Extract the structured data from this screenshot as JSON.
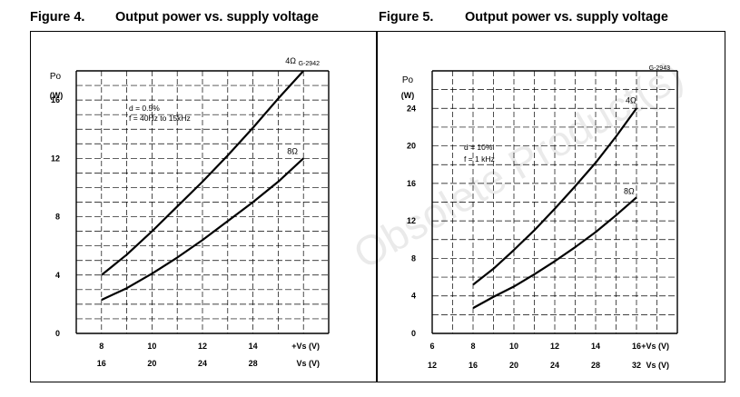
{
  "headings": [
    {
      "number": "Figure 4.",
      "title": "Output power vs. supply voltage"
    },
    {
      "number": "Figure 5.",
      "title": "Output power vs. supply voltage"
    }
  ],
  "watermark": "Obsolete Product(s)",
  "chart_data": [
    {
      "type": "line",
      "code": "G-2942",
      "ylabel": "Po",
      "yunit": "(W)",
      "ylim": [
        0,
        18
      ],
      "yticks": [
        0,
        4,
        8,
        12,
        16
      ],
      "xlim": [
        7,
        17
      ],
      "xticks": [
        8,
        10,
        12,
        14
      ],
      "xticks2": [
        "16",
        "20",
        "24",
        "28"
      ],
      "xlabel": "+Vs (V)",
      "xlabel2": "Vs (V)",
      "annotation": [
        "d = 0.5%",
        "f = 40Hz to 15kHz"
      ],
      "series": [
        {
          "name": "4Ω",
          "x": [
            8,
            9,
            10,
            11,
            12,
            13,
            14,
            15,
            16
          ],
          "y": [
            4.0,
            5.4,
            7.0,
            8.7,
            10.4,
            12.2,
            14.1,
            16.1,
            18.0
          ]
        },
        {
          "name": "8Ω",
          "x": [
            8,
            9,
            10,
            11,
            12,
            13,
            14,
            15,
            16
          ],
          "y": [
            2.3,
            3.1,
            4.1,
            5.2,
            6.4,
            7.7,
            9.0,
            10.4,
            12.0
          ]
        }
      ]
    },
    {
      "type": "line",
      "code": "G-2943",
      "ylabel": "Po",
      "yunit": "(W)",
      "ylim": [
        0,
        28
      ],
      "yticks": [
        0,
        4,
        8,
        12,
        16,
        20,
        24
      ],
      "xlim": [
        6,
        18
      ],
      "xticks": [
        6,
        8,
        10,
        12,
        14,
        16
      ],
      "xticks2": [
        "12",
        "16",
        "20",
        "24",
        "28",
        "32"
      ],
      "xlabel": "+Vs (V)",
      "xlabel2": "Vs (V)",
      "annotation": [
        "d = 10%",
        "f = 1 kHz"
      ],
      "series": [
        {
          "name": "4Ω",
          "x": [
            8,
            9,
            10,
            11,
            12,
            13,
            14,
            15,
            16
          ],
          "y": [
            5.2,
            6.9,
            8.9,
            11.0,
            13.3,
            15.7,
            18.2,
            21.0,
            24.0
          ]
        },
        {
          "name": "8Ω",
          "x": [
            8,
            9,
            10,
            11,
            12,
            13,
            14,
            15,
            16
          ],
          "y": [
            2.7,
            3.9,
            5.0,
            6.3,
            7.7,
            9.2,
            10.8,
            12.6,
            14.5
          ]
        }
      ]
    }
  ]
}
